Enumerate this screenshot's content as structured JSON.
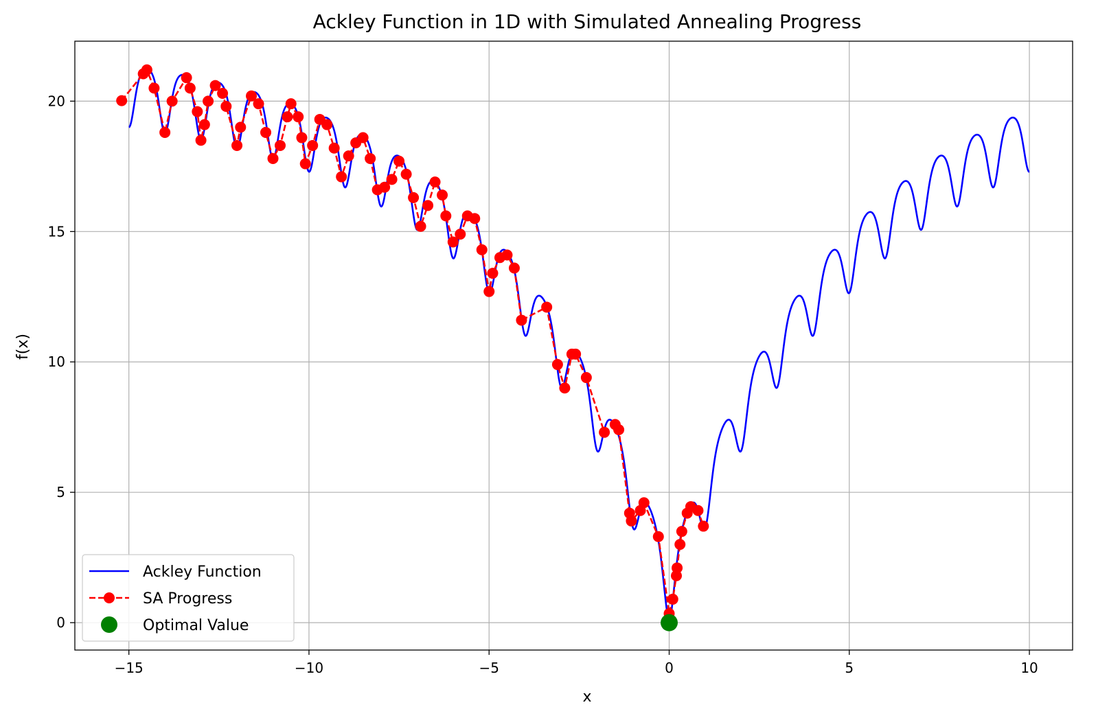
{
  "chart_data": {
    "type": "line",
    "title": "Ackley Function in 1D with Simulated Annealing Progress",
    "xlabel": "x",
    "ylabel": "f(x)",
    "xlim": [
      -16.5,
      11.2
    ],
    "ylim": [
      -1.05,
      22.3
    ],
    "xticks": [
      -15,
      -10,
      -5,
      0,
      5,
      10
    ],
    "yticks": [
      0,
      5,
      10,
      15,
      20
    ],
    "grid": true,
    "legend_position": "bottom-left",
    "colors": {
      "function": "#0000ff",
      "sa": "#ff0000",
      "optimal": "#008000"
    },
    "function_series": {
      "name": "Ackley Function",
      "x_range": [
        -15,
        10
      ],
      "formula": "ackley_1d"
    },
    "sa_series": {
      "name": "SA Progress",
      "points": [
        [
          -15.2,
          20.02
        ],
        [
          -14.6,
          21.05
        ],
        [
          -14.5,
          21.2
        ],
        [
          -14.3,
          20.5
        ],
        [
          -14.0,
          18.8
        ],
        [
          -13.8,
          20.0
        ],
        [
          -13.4,
          20.9
        ],
        [
          -13.3,
          20.5
        ],
        [
          -13.1,
          19.6
        ],
        [
          -13.0,
          18.5
        ],
        [
          -12.9,
          19.1
        ],
        [
          -12.8,
          20.0
        ],
        [
          -12.6,
          20.6
        ],
        [
          -12.4,
          20.3
        ],
        [
          -12.3,
          19.8
        ],
        [
          -12.0,
          18.3
        ],
        [
          -11.9,
          19.0
        ],
        [
          -11.6,
          20.2
        ],
        [
          -11.4,
          19.9
        ],
        [
          -11.2,
          18.8
        ],
        [
          -11.0,
          17.8
        ],
        [
          -10.8,
          18.3
        ],
        [
          -10.6,
          19.4
        ],
        [
          -10.5,
          19.9
        ],
        [
          -10.3,
          19.4
        ],
        [
          -10.2,
          18.6
        ],
        [
          -10.1,
          17.6
        ],
        [
          -9.9,
          18.3
        ],
        [
          -9.7,
          19.3
        ],
        [
          -9.5,
          19.1
        ],
        [
          -9.3,
          18.2
        ],
        [
          -9.1,
          17.1
        ],
        [
          -8.9,
          17.9
        ],
        [
          -8.7,
          18.4
        ],
        [
          -8.5,
          18.6
        ],
        [
          -8.3,
          17.8
        ],
        [
          -8.1,
          16.6
        ],
        [
          -7.9,
          16.7
        ],
        [
          -7.7,
          17.0
        ],
        [
          -7.5,
          17.7
        ],
        [
          -7.3,
          17.2
        ],
        [
          -7.1,
          16.3
        ],
        [
          -6.9,
          15.2
        ],
        [
          -6.7,
          16.0
        ],
        [
          -6.5,
          16.9
        ],
        [
          -6.3,
          16.4
        ],
        [
          -6.2,
          15.6
        ],
        [
          -6.0,
          14.6
        ],
        [
          -5.8,
          14.9
        ],
        [
          -5.6,
          15.6
        ],
        [
          -5.4,
          15.5
        ],
        [
          -5.2,
          14.3
        ],
        [
          -5.0,
          12.7
        ],
        [
          -4.9,
          13.4
        ],
        [
          -4.7,
          14.0
        ],
        [
          -4.5,
          14.1
        ],
        [
          -4.3,
          13.6
        ],
        [
          -4.1,
          11.6
        ],
        [
          -3.4,
          12.1
        ],
        [
          -3.1,
          9.9
        ],
        [
          -2.9,
          9.0
        ],
        [
          -2.7,
          10.3
        ],
        [
          -2.6,
          10.3
        ],
        [
          -2.3,
          9.4
        ],
        [
          -1.8,
          7.3
        ],
        [
          -1.5,
          7.6
        ],
        [
          -1.4,
          7.4
        ],
        [
          -1.1,
          4.2
        ],
        [
          -1.05,
          3.9
        ],
        [
          -0.8,
          4.3
        ],
        [
          -0.7,
          4.6
        ],
        [
          -0.3,
          3.3
        ],
        [
          0.0,
          0.35
        ],
        [
          0.1,
          0.9
        ],
        [
          0.2,
          1.8
        ],
        [
          0.22,
          2.1
        ],
        [
          0.3,
          3.0
        ],
        [
          0.35,
          3.5
        ],
        [
          0.5,
          4.2
        ],
        [
          0.6,
          4.45
        ],
        [
          0.8,
          4.3
        ],
        [
          0.95,
          3.7
        ]
      ]
    },
    "optimal_point": {
      "name": "Optimal Value",
      "x": 0,
      "y": 0
    },
    "legend": [
      "Ackley Function",
      "SA Progress",
      "Optimal Value"
    ]
  }
}
